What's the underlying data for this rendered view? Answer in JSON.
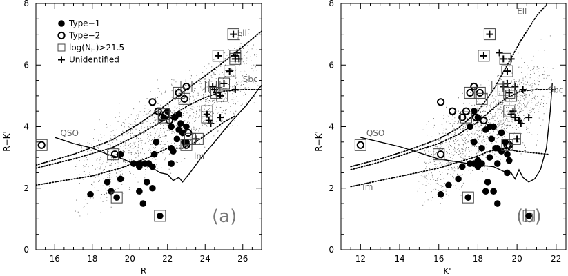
{
  "chart_data": [
    {
      "type": "scatter",
      "xlabel": "R",
      "ylabel": "R−K'",
      "xlim": [
        15,
        27
      ],
      "ylim": [
        0,
        8
      ],
      "xticks": [
        16,
        18,
        20,
        22,
        24,
        26
      ],
      "yticks": [
        0,
        2,
        4,
        6,
        8
      ],
      "panel_label": "(a)",
      "legend": {
        "placement": "top-left",
        "entries": [
          {
            "symbol": "filled-circle",
            "label": "Type−1"
          },
          {
            "symbol": "open-circle",
            "label": "Type−2"
          },
          {
            "symbol": "box",
            "label": "log(N",
            "sub": "H",
            "suffix": ")>21.5"
          },
          {
            "symbol": "plus",
            "label": "Unidentified"
          }
        ]
      },
      "curves": [
        {
          "name": "QSO",
          "style": "solid",
          "label_at": [
            16.3,
            3.7
          ],
          "points": [
            [
              16.0,
              3.65
            ],
            [
              17.0,
              3.45
            ],
            [
              18.0,
              3.3
            ],
            [
              18.8,
              3.1
            ],
            [
              19.4,
              3.0
            ],
            [
              20.0,
              2.85
            ],
            [
              20.6,
              2.75
            ],
            [
              21.1,
              2.7
            ],
            [
              21.6,
              2.5
            ],
            [
              22.0,
              2.45
            ],
            [
              22.3,
              2.25
            ],
            [
              22.6,
              2.35
            ],
            [
              22.8,
              2.2
            ],
            [
              23.2,
              2.5
            ],
            [
              23.8,
              3.0
            ],
            [
              24.5,
              3.5
            ],
            [
              25.3,
              4.1
            ],
            [
              26.2,
              4.7
            ],
            [
              27.0,
              5.35
            ]
          ]
        },
        {
          "name": "Ell",
          "style": "dotted",
          "label_at": [
            25.7,
            6.95
          ],
          "points": [
            [
              15.0,
              2.75
            ],
            [
              17.0,
              3.1
            ],
            [
              19.0,
              3.55
            ],
            [
              20.5,
              4.1
            ],
            [
              21.8,
              4.65
            ],
            [
              23.0,
              5.2
            ],
            [
              24.0,
              5.65
            ],
            [
              25.0,
              6.1
            ],
            [
              26.0,
              6.6
            ],
            [
              27.0,
              7.1
            ]
          ]
        },
        {
          "name": "Sbc",
          "style": "dotted",
          "label_at": [
            26.0,
            5.45
          ],
          "points": [
            [
              15.0,
              2.65
            ],
            [
              17.0,
              2.95
            ],
            [
              19.0,
              3.3
            ],
            [
              20.5,
              3.75
            ],
            [
              21.8,
              4.2
            ],
            [
              23.0,
              4.65
            ],
            [
              24.0,
              4.95
            ],
            [
              25.0,
              5.15
            ],
            [
              26.0,
              5.2
            ],
            [
              27.0,
              5.2
            ]
          ]
        },
        {
          "name": "Im",
          "style": "dotted",
          "label_at": [
            23.4,
            2.95
          ],
          "points": [
            [
              15.0,
              2.1
            ],
            [
              16.5,
              2.25
            ],
            [
              18.0,
              2.4
            ],
            [
              19.5,
              2.65
            ],
            [
              21.0,
              3.0
            ],
            [
              22.0,
              3.3
            ],
            [
              22.8,
              3.3
            ],
            [
              23.5,
              3.5
            ],
            [
              24.2,
              3.8
            ],
            [
              25.0,
              4.15
            ],
            [
              25.6,
              4.35
            ]
          ]
        }
      ],
      "type1": [
        [
          17.9,
          1.8
        ],
        [
          18.8,
          2.2
        ],
        [
          19.0,
          1.9
        ],
        [
          19.3,
          1.7
        ],
        [
          19.5,
          2.3
        ],
        [
          19.5,
          3.1
        ],
        [
          20.2,
          2.8
        ],
        [
          20.5,
          2.7
        ],
        [
          20.5,
          2.8
        ],
        [
          20.8,
          2.8
        ],
        [
          20.9,
          2.2
        ],
        [
          21.0,
          2.8
        ],
        [
          21.2,
          2.0
        ],
        [
          21.2,
          2.7
        ],
        [
          20.5,
          1.9
        ],
        [
          20.7,
          1.5
        ],
        [
          21.6,
          1.1
        ],
        [
          21.3,
          3.1
        ],
        [
          21.4,
          3.5
        ],
        [
          21.8,
          4.3
        ],
        [
          22.0,
          4.5
        ],
        [
          22.2,
          4.0
        ],
        [
          22.2,
          3.3
        ],
        [
          22.2,
          2.8
        ],
        [
          22.3,
          3.2
        ],
        [
          22.5,
          3.6
        ],
        [
          22.6,
          3.9
        ],
        [
          22.7,
          4.1
        ],
        [
          22.8,
          3.8
        ],
        [
          22.9,
          3.5
        ],
        [
          23.0,
          4.0
        ],
        [
          23.0,
          3.5
        ],
        [
          22.6,
          4.4
        ],
        [
          22.4,
          4.3
        ]
      ],
      "type2": [
        [
          15.3,
          3.4
        ],
        [
          19.2,
          3.1
        ],
        [
          21.2,
          4.8
        ],
        [
          21.5,
          4.5
        ],
        [
          21.7,
          4.3
        ],
        [
          21.9,
          4.4
        ],
        [
          22.1,
          4.2
        ],
        [
          22.6,
          5.1
        ],
        [
          22.9,
          4.9
        ],
        [
          23.0,
          5.3
        ],
        [
          23.1,
          3.8
        ],
        [
          23.0,
          3.4
        ]
      ],
      "boxes": [
        [
          15.3,
          3.4
        ],
        [
          19.1,
          3.1
        ],
        [
          19.3,
          1.7
        ],
        [
          21.6,
          1.1
        ],
        [
          21.8,
          4.4
        ],
        [
          21.8,
          4.3
        ],
        [
          22.6,
          5.1
        ],
        [
          22.9,
          4.9
        ],
        [
          23.0,
          5.3
        ],
        [
          23.0,
          3.4
        ],
        [
          23.2,
          3.6
        ],
        [
          23.6,
          3.6
        ],
        [
          24.1,
          4.5
        ],
        [
          24.1,
          4.3
        ],
        [
          24.3,
          5.3
        ],
        [
          24.5,
          5.3
        ],
        [
          24.6,
          5.1
        ],
        [
          24.7,
          6.3
        ],
        [
          24.9,
          5.0
        ],
        [
          25.0,
          5.4
        ],
        [
          25.3,
          5.8
        ],
        [
          25.5,
          7.0
        ],
        [
          25.6,
          6.3
        ],
        [
          25.6,
          6.2
        ]
      ],
      "plus": [
        [
          23.5,
          3.6
        ],
        [
          24.1,
          4.4
        ],
        [
          24.2,
          4.2
        ],
        [
          24.3,
          4.1
        ],
        [
          24.4,
          5.3
        ],
        [
          24.5,
          5.2
        ],
        [
          24.6,
          5.1
        ],
        [
          24.7,
          6.3
        ],
        [
          24.8,
          5.0
        ],
        [
          24.8,
          4.3
        ],
        [
          25.0,
          5.4
        ],
        [
          25.3,
          5.8
        ],
        [
          25.5,
          7.0
        ],
        [
          25.6,
          6.3
        ],
        [
          25.6,
          6.2
        ],
        [
          25.7,
          6.4
        ],
        [
          25.8,
          6.2
        ],
        [
          25.6,
          5.2
        ]
      ]
    },
    {
      "type": "scatter",
      "xlabel": "K'",
      "ylabel": "R−K'",
      "xlim": [
        11,
        22.5
      ],
      "ylim": [
        0,
        8
      ],
      "xticks": [
        12,
        14,
        16,
        18,
        20,
        22
      ],
      "yticks": [
        0,
        2,
        4,
        6,
        8
      ],
      "panel_label": "(b)",
      "curves": [
        {
          "name": "QSO",
          "style": "solid",
          "label_at": [
            12.3,
            3.7
          ],
          "points": [
            [
              12.0,
              3.65
            ],
            [
              13.0,
              3.5
            ],
            [
              14.0,
              3.35
            ],
            [
              15.0,
              3.15
            ],
            [
              16.0,
              2.95
            ],
            [
              17.0,
              2.85
            ],
            [
              18.0,
              2.75
            ],
            [
              18.8,
              2.7
            ],
            [
              19.3,
              2.55
            ],
            [
              19.7,
              2.5
            ],
            [
              19.9,
              2.3
            ],
            [
              20.1,
              2.6
            ],
            [
              20.3,
              2.35
            ],
            [
              20.6,
              2.2
            ],
            [
              20.9,
              2.3
            ],
            [
              21.2,
              2.6
            ],
            [
              21.5,
              3.3
            ],
            [
              21.7,
              4.5
            ],
            [
              21.8,
              5.4
            ]
          ]
        },
        {
          "name": "Ell",
          "style": "dotted",
          "label_at": [
            20.0,
            7.65
          ],
          "points": [
            [
              11.5,
              2.7
            ],
            [
              13.0,
              2.95
            ],
            [
              14.5,
              3.25
            ],
            [
              16.0,
              3.6
            ],
            [
              17.0,
              3.95
            ],
            [
              18.0,
              4.5
            ],
            [
              18.8,
              5.2
            ],
            [
              19.5,
              6.0
            ],
            [
              20.2,
              6.8
            ],
            [
              21.0,
              7.6
            ],
            [
              21.5,
              7.95
            ]
          ]
        },
        {
          "name": "Sbc",
          "style": "dotted",
          "label_at": [
            21.6,
            5.1
          ],
          "points": [
            [
              11.5,
              2.6
            ],
            [
              13.0,
              2.85
            ],
            [
              14.5,
              3.15
            ],
            [
              16.0,
              3.45
            ],
            [
              17.0,
              3.75
            ],
            [
              18.0,
              4.15
            ],
            [
              18.8,
              4.6
            ],
            [
              19.5,
              4.95
            ],
            [
              20.2,
              5.15
            ],
            [
              21.0,
              5.2
            ],
            [
              22.0,
              5.2
            ]
          ]
        },
        {
          "name": "Im",
          "style": "dotted",
          "label_at": [
            12.1,
            1.95
          ],
          "points": [
            [
              11.5,
              2.05
            ],
            [
              13.0,
              2.25
            ],
            [
              14.5,
              2.45
            ],
            [
              16.0,
              2.65
            ],
            [
              17.0,
              2.85
            ],
            [
              17.8,
              3.0
            ],
            [
              18.6,
              3.2
            ],
            [
              19.3,
              3.3
            ],
            [
              20.0,
              3.2
            ],
            [
              20.8,
              3.15
            ],
            [
              21.6,
              3.1
            ]
          ]
        }
      ],
      "type1": [
        [
          16.1,
          1.8
        ],
        [
          16.5,
          2.1
        ],
        [
          17.0,
          2.3
        ],
        [
          17.2,
          2.7
        ],
        [
          17.5,
          1.7
        ],
        [
          17.6,
          2.8
        ],
        [
          17.8,
          3.5
        ],
        [
          17.8,
          2.8
        ],
        [
          18.0,
          2.7
        ],
        [
          18.0,
          2.9
        ],
        [
          18.2,
          2.8
        ],
        [
          18.4,
          1.9
        ],
        [
          18.5,
          2.2
        ],
        [
          18.6,
          3.0
        ],
        [
          18.8,
          1.9
        ],
        [
          18.9,
          3.3
        ],
        [
          19.0,
          1.5
        ],
        [
          17.8,
          4.5
        ],
        [
          18.0,
          4.3
        ],
        [
          18.4,
          3.9
        ],
        [
          18.6,
          4.0
        ],
        [
          18.7,
          3.6
        ],
        [
          18.8,
          4.0
        ],
        [
          19.0,
          3.3
        ],
        [
          19.2,
          3.8
        ],
        [
          19.2,
          3.2
        ],
        [
          19.4,
          3.5
        ],
        [
          19.5,
          2.5
        ],
        [
          19.5,
          3.1
        ],
        [
          19.6,
          2.9
        ],
        [
          20.6,
          1.1
        ],
        [
          19.0,
          2.8
        ],
        [
          18.2,
          3.3
        ],
        [
          17.6,
          4.0
        ]
      ],
      "type2": [
        [
          12.0,
          3.4
        ],
        [
          16.1,
          3.1
        ],
        [
          16.1,
          4.8
        ],
        [
          16.7,
          4.5
        ],
        [
          17.2,
          4.3
        ],
        [
          17.4,
          4.5
        ],
        [
          17.6,
          5.1
        ],
        [
          17.9,
          4.3
        ],
        [
          17.8,
          5.3
        ],
        [
          18.1,
          5.1
        ],
        [
          18.3,
          4.2
        ],
        [
          19.5,
          3.4
        ],
        [
          19.6,
          3.4
        ]
      ],
      "boxes": [
        [
          12.0,
          3.4
        ],
        [
          16.0,
          3.1
        ],
        [
          17.5,
          1.7
        ],
        [
          20.6,
          1.1
        ],
        [
          17.4,
          4.3
        ],
        [
          17.6,
          5.1
        ],
        [
          18.1,
          5.1
        ],
        [
          18.2,
          4.9
        ],
        [
          18.6,
          7.0
        ],
        [
          18.3,
          6.3
        ],
        [
          19.0,
          5.3
        ],
        [
          19.2,
          5.3
        ],
        [
          19.4,
          6.2
        ],
        [
          19.5,
          5.8
        ],
        [
          19.6,
          5.3
        ],
        [
          19.6,
          5.1
        ],
        [
          19.7,
          5.0
        ],
        [
          19.6,
          4.5
        ],
        [
          19.5,
          3.4
        ],
        [
          19.9,
          3.6
        ],
        [
          19.3,
          5.2
        ]
      ],
      "plus": [
        [
          18.6,
          7.0
        ],
        [
          18.3,
          6.3
        ],
        [
          19.1,
          6.4
        ],
        [
          19.3,
          6.2
        ],
        [
          19.7,
          6.2
        ],
        [
          19.5,
          5.8
        ],
        [
          19.3,
          5.3
        ],
        [
          19.6,
          5.1
        ],
        [
          19.9,
          5.3
        ],
        [
          20.3,
          5.2
        ],
        [
          19.8,
          4.5
        ],
        [
          19.9,
          4.3
        ],
        [
          20.1,
          4.2
        ],
        [
          20.2,
          4.1
        ],
        [
          20.6,
          4.3
        ],
        [
          19.7,
          4.4
        ],
        [
          20.0,
          3.6
        ],
        [
          19.5,
          5.4
        ]
      ]
    }
  ]
}
